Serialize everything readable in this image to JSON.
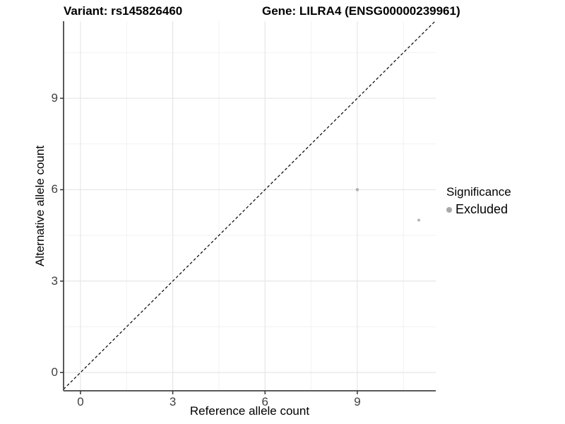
{
  "title": {
    "variant_label": "Variant: rs145826460",
    "gene_label": "Gene: LILRA4 (ENSG00000239961)"
  },
  "legend": {
    "title": "Significance",
    "items": [
      {
        "label": "Excluded",
        "color": "#aaaaaa"
      }
    ]
  },
  "colors": {
    "point": "#b3b3b3",
    "legend_point": "#a8a8a8",
    "grid_major": "#e6e6e6",
    "grid_minor": "#f2f2f2",
    "axis_line": "#595959",
    "tick_mark": "#333333",
    "tick_label": "#404040",
    "identity_line": "#000000",
    "background": "#ffffff"
  },
  "chart_data": {
    "type": "scatter",
    "title": "Variant: rs145826460    Gene: LILRA4 (ENSG00000239961)",
    "xlabel": "Reference allele count",
    "ylabel": "Alternative allele count",
    "xlim": [
      -0.55,
      11.55
    ],
    "ylim": [
      -0.6,
      11.53
    ],
    "x_ticks": [
      0,
      3,
      6,
      9
    ],
    "y_ticks": [
      0,
      3,
      6,
      9
    ],
    "x_minor_breaks": [
      1.5,
      4.5,
      7.5,
      10.5
    ],
    "y_minor_breaks": [
      1.5,
      4.5,
      7.5,
      10.5
    ],
    "grid": "major+minor",
    "legend_position": "right",
    "series": [
      {
        "name": "Excluded",
        "color": "#b3b3b3",
        "points": [
          {
            "x": 9,
            "y": 6,
            "r": 2.3
          },
          {
            "x": 11,
            "y": 5,
            "r": 2.0
          }
        ]
      }
    ],
    "reference_line": {
      "type": "identity y=x",
      "style": "dashed",
      "color": "#000000"
    }
  }
}
